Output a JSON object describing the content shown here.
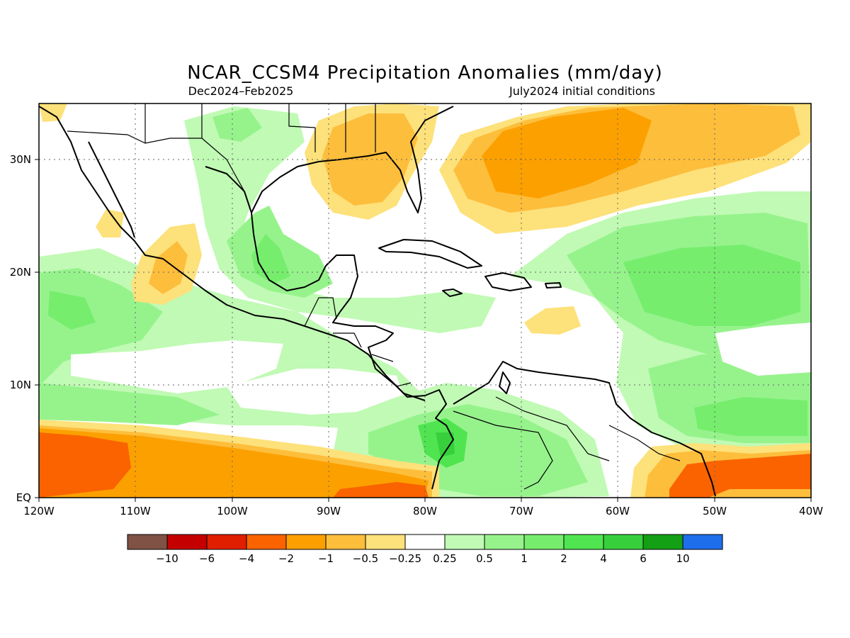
{
  "title": "NCAR_CCSM4 Precipitation Anomalies (mm/day)",
  "subtitle_left": "Dec2024–Feb2025",
  "subtitle_right": "July2024 initial conditions",
  "lat_labels": [
    "30N",
    "20N",
    "10N",
    "EQ"
  ],
  "lon_labels": [
    "120W",
    "110W",
    "100W",
    "90W",
    "80W",
    "70W",
    "60W",
    "50W",
    "40W"
  ],
  "colorbar": {
    "colors": [
      "#7f5245",
      "#c40000",
      "#e01e00",
      "#fa6300",
      "#fca000",
      "#fdbe3c",
      "#fde17a",
      "#ffffff",
      "#c0fab4",
      "#96f38c",
      "#77ed6e",
      "#50e550",
      "#37d03c",
      "#14a014",
      "#1e6eeb"
    ],
    "labels": [
      "−10",
      "−6",
      "−4",
      "−2",
      "−1",
      "−0.5",
      "−0.25",
      "0.25",
      "0.5",
      "1",
      "2",
      "4",
      "6",
      "10"
    ]
  },
  "legend_colors": {
    "dry_strong": "#fa6300",
    "dry_mod": "#fca000",
    "dry_light": "#fdbe3c",
    "dry_weak": "#fde17a",
    "wet_weak": "#c0fab4",
    "wet_light": "#96f38c",
    "wet_mod": "#77ed6e",
    "wet_strong": "#50e550",
    "wet_heavy": "#37d03c"
  }
}
